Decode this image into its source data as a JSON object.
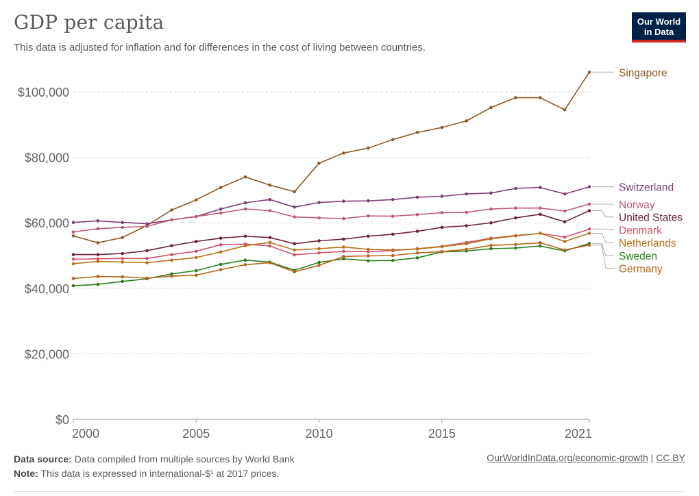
{
  "header": {
    "title": "GDP per capita",
    "subtitle": "This data is adjusted for inflation and for differences in the cost of living between countries.",
    "logo_line1": "Our World",
    "logo_line2": "in Data"
  },
  "footer": {
    "source_label": "Data source:",
    "source_text": "Data compiled from multiple sources by World Bank",
    "note_label": "Note:",
    "note_text": "This data is expressed in international-$¹ at 2017 prices.",
    "link_text": "OurWorldInData.org/economic-growth",
    "separator": "|",
    "license_text": "CC BY"
  },
  "chart_data": {
    "type": "line",
    "title": "GDP per capita",
    "xlabel": "",
    "ylabel": "",
    "xlim": [
      2000,
      2021
    ],
    "ylim": [
      0,
      110000
    ],
    "x_ticks": [
      2000,
      2005,
      2010,
      2015,
      2021
    ],
    "x_tick_labels": [
      "2000",
      "2005",
      "2010",
      "2015",
      "2021"
    ],
    "y_ticks": [
      0,
      20000,
      40000,
      60000,
      80000,
      100000
    ],
    "y_tick_labels": [
      "$0",
      "$20,000",
      "$40,000",
      "$60,000",
      "$80,000",
      "$100,000"
    ],
    "grid": "horizontal dashed",
    "legend": "right end labels",
    "x": [
      2000,
      2001,
      2002,
      2003,
      2004,
      2005,
      2006,
      2007,
      2008,
      2009,
      2010,
      2011,
      2012,
      2013,
      2014,
      2015,
      2016,
      2017,
      2018,
      2019,
      2020,
      2021
    ],
    "series": [
      {
        "name": "Singapore",
        "color": "#8c5a28",
        "values": [
          56000,
          53900,
          55500,
          59200,
          63900,
          67000,
          70800,
          74000,
          71500,
          69500,
          78200,
          81300,
          82800,
          85400,
          87600,
          89100,
          91100,
          95200,
          98200,
          98200,
          94500,
          106000
        ]
      },
      {
        "name": "Switzerland",
        "color": "#7d3f73",
        "values": [
          60100,
          60600,
          60100,
          59700,
          60900,
          61900,
          64200,
          66100,
          67100,
          64800,
          66200,
          66600,
          66700,
          67100,
          67800,
          68100,
          68800,
          69100,
          70500,
          70800,
          68800,
          71000
        ]
      },
      {
        "name": "Norway",
        "color": "#c05a74",
        "values": [
          57200,
          58200,
          58600,
          58900,
          60900,
          61900,
          63000,
          64200,
          63700,
          61800,
          61500,
          61300,
          62100,
          62000,
          62500,
          63100,
          63200,
          64200,
          64500,
          64500,
          63600,
          65700
        ]
      },
      {
        "name": "United States",
        "color": "#6e2436",
        "values": [
          50300,
          50300,
          50600,
          51500,
          53000,
          54300,
          55300,
          55900,
          55500,
          53600,
          54500,
          55000,
          55900,
          56500,
          57400,
          58600,
          59100,
          60000,
          61500,
          62600,
          60300,
          63700
        ]
      },
      {
        "name": "Denmark",
        "color": "#d2536a",
        "values": [
          48900,
          49000,
          49100,
          49100,
          50300,
          51300,
          53300,
          53500,
          52900,
          50200,
          50800,
          51300,
          51200,
          51500,
          52100,
          52800,
          54000,
          55300,
          56100,
          56800,
          55600,
          58100
        ]
      },
      {
        "name": "Netherlands",
        "color": "#b3721a",
        "values": [
          47500,
          48200,
          48000,
          47800,
          48600,
          49400,
          51100,
          53000,
          54000,
          51700,
          52100,
          52600,
          51900,
          51700,
          52000,
          52700,
          53600,
          55100,
          56000,
          56800,
          54300,
          56800
        ]
      },
      {
        "name": "Sweden",
        "color": "#2c7e1e",
        "values": [
          40800,
          41200,
          42100,
          42900,
          44400,
          45400,
          47300,
          48600,
          48000,
          45500,
          47900,
          49000,
          48400,
          48500,
          49300,
          51100,
          51400,
          52100,
          52300,
          52900,
          51400,
          53700
        ]
      },
      {
        "name": "Germany",
        "color": "#b5651d",
        "values": [
          43000,
          43600,
          43500,
          43100,
          43700,
          44000,
          45700,
          47200,
          47800,
          45000,
          47000,
          49700,
          49900,
          50000,
          50800,
          51200,
          51900,
          53100,
          53400,
          53900,
          51700,
          53200
        ]
      }
    ]
  }
}
